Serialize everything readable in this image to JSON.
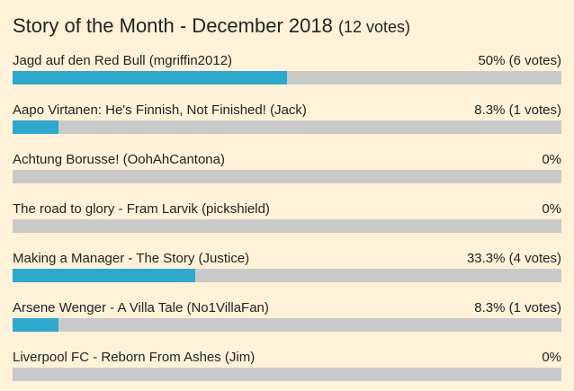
{
  "poll": {
    "title": "Story of the Month - December 2018",
    "total": "(12 votes)",
    "items": [
      {
        "label": "Jagd auf den Red Bull (mgriffin2012)",
        "result": "50% (6 votes)",
        "percent": 50
      },
      {
        "label": "Aapo Virtanen: He's Finnish, Not Finished! (Jack)",
        "result": "8.3% (1 votes)",
        "percent": 8.3
      },
      {
        "label": "Achtung Borusse! (OohAhCantona)",
        "result": "0%",
        "percent": 0
      },
      {
        "label": "The road to glory - Fram Larvik (pickshield)",
        "result": "0%",
        "percent": 0
      },
      {
        "label": "Making a Manager - The Story (Justice)",
        "result": "33.3% (4 votes)",
        "percent": 33.3
      },
      {
        "label": "Arsene Wenger - A Villa Tale (No1VillaFan)",
        "result": "8.3% (1 votes)",
        "percent": 8.3
      },
      {
        "label": "Liverpool FC - Reborn From Ashes (Jim)",
        "result": "0%",
        "percent": 0
      }
    ]
  }
}
